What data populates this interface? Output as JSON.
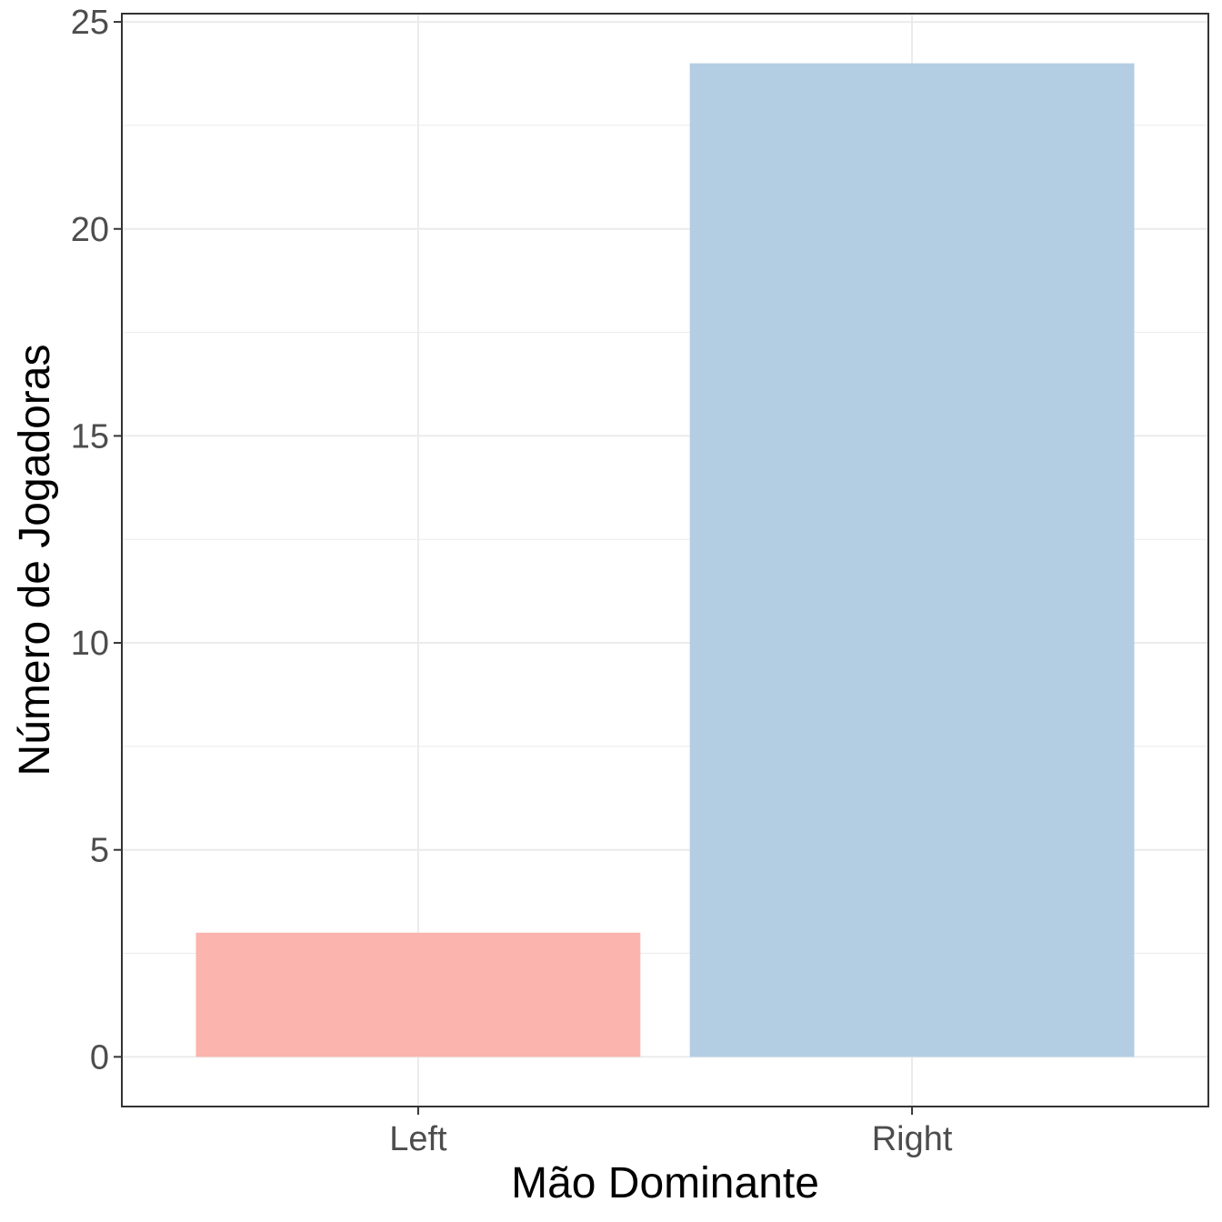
{
  "chart_data": {
    "type": "bar",
    "title": "",
    "xlabel": "Mão Dominante",
    "ylabel": "Número de Jogadoras",
    "categories": [
      "Left",
      "Right"
    ],
    "values": [
      3,
      24
    ],
    "colors": [
      "#FBB4AE",
      "#B3CDE3"
    ],
    "ylim": [
      -1.2,
      25.2
    ],
    "yticks": [
      0,
      5,
      10,
      15,
      20,
      25
    ],
    "grid": true,
    "legend": "none"
  }
}
